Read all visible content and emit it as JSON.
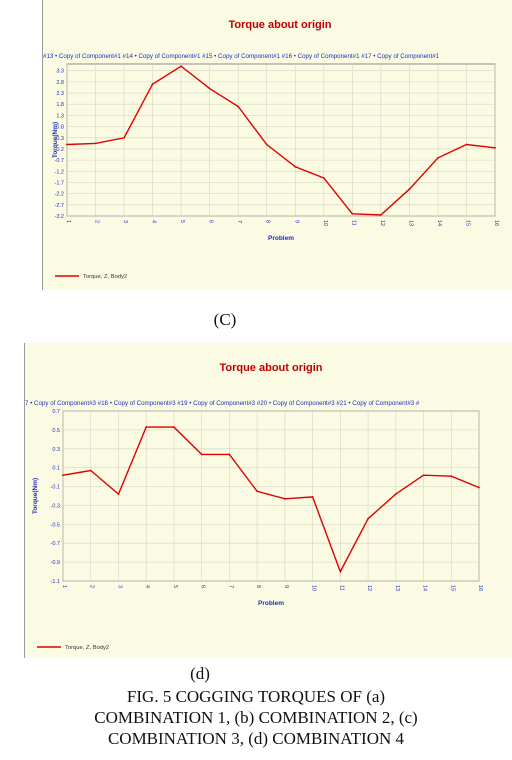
{
  "chart_data": [
    {
      "type": "line",
      "title": "Torque about origin",
      "header_strip": "#13 • Copy of Component#1 #14 • Copy of Component#1 #15 • Copy of Component#1 #16 • Copy of Component#1 #17 • Copy of Component#1",
      "xlabel": "Problem",
      "ylabel": "Torque(Nm)",
      "ylim": [
        -3.2,
        3.6
      ],
      "yticks": [
        "3.3",
        "2.8",
        "2.3",
        "1.8",
        "1.3",
        "0.8",
        "0.3",
        "-0.2",
        "-0.7",
        "-1.2",
        "-1.7",
        "-2.2",
        "-2.7",
        "-3.2"
      ],
      "x": [
        1,
        2,
        3,
        4,
        5,
        6,
        7,
        8,
        9,
        10,
        11,
        12,
        13,
        14,
        15,
        16
      ],
      "series": [
        {
          "name": "Torque, Z, Body2",
          "color": "#e00000",
          "values": [
            0.0,
            0.05,
            0.3,
            2.7,
            3.5,
            2.5,
            1.7,
            0.0,
            -1.0,
            -1.5,
            -3.1,
            -3.15,
            -2.0,
            -0.6,
            0.0,
            -0.15
          ]
        }
      ],
      "legend_position": "bottom-left",
      "grid": true
    },
    {
      "type": "line",
      "title": "Torque about origin",
      "header_strip": "7 • Copy of Component#3 #18 • Copy of Component#3 #19 • Copy of Component#3 #20 • Copy of Component#3 #21 • Copy of Component#3 #",
      "xlabel": "Problem",
      "ylabel": "Torque(Nm)",
      "ylim": [
        -1.1,
        0.7
      ],
      "yticks": [
        "0.7",
        "0.5",
        "0.3",
        "0.1",
        "-0.1",
        "-0.3",
        "-0.5",
        "-0.7",
        "-0.9",
        "-1.1"
      ],
      "x": [
        1,
        2,
        3,
        4,
        5,
        6,
        7,
        8,
        9,
        10,
        11,
        12,
        13,
        14,
        15,
        16
      ],
      "series": [
        {
          "name": "Torque, Z, Body2",
          "color": "#e00000",
          "values": [
            0.02,
            0.07,
            -0.18,
            0.53,
            0.53,
            0.24,
            0.24,
            -0.15,
            -0.23,
            -0.21,
            -1.0,
            -0.44,
            -0.18,
            0.02,
            0.01,
            -0.11
          ]
        }
      ],
      "legend_position": "bottom-left",
      "grid": true
    }
  ],
  "subfigure_labels": [
    "(C)",
    "(d)"
  ],
  "caption": {
    "line1": "FIG. 5 COGGING TORQUES OF (a)",
    "line2": "COMBINATION 1, (b) COMBINATION 2, (c)",
    "line3": "COMBINATION 3, (d) COMBINATION 4"
  }
}
